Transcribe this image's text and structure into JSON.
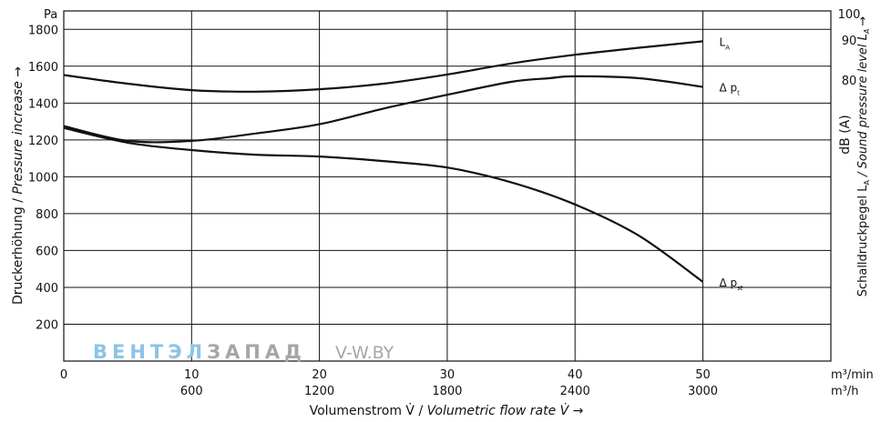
{
  "chart_data": {
    "type": "line",
    "y_unit": "Pa",
    "ylabel_de": "Druckerhöhung / ",
    "ylabel_en": "Pressure increase →",
    "ylim": [
      0,
      1900
    ],
    "yticks": [
      200,
      400,
      600,
      800,
      1000,
      1200,
      1400,
      1600,
      1800
    ],
    "xlabel_de": "Volumenstrom V̇ / ",
    "xlabel_en": "Volumetric flow rate V̇ →",
    "xlim": [
      0,
      60
    ],
    "x_unit_main": "m³/min",
    "x_unit_secondary": "m³/h",
    "xticks_main": [
      "0",
      "10",
      "20",
      "30",
      "40",
      "50"
    ],
    "xticks_secondary": [
      "600",
      "1200",
      "1800",
      "2400",
      "3000"
    ],
    "y2_unit": "dB (A)",
    "y2label_de": "Schalldruckpegel L",
    "y2label_sub": "A",
    "y2label_en": " / Sound pressure level L",
    "y2label_arrow": "→",
    "y2ticks": [
      "100",
      "90",
      "80"
    ],
    "grid": true,
    "series": [
      {
        "name": "L",
        "name_sub": "A",
        "axis": "right",
        "x": [
          0,
          5,
          10,
          15,
          20,
          25,
          30,
          35,
          40,
          45,
          50
        ],
        "y": [
          1552,
          1505,
          1470,
          1462,
          1475,
          1505,
          1555,
          1615,
          1662,
          1700,
          1735
        ]
      },
      {
        "name": "Δ p",
        "name_sub": "t",
        "axis": "left",
        "x": [
          0,
          5,
          10,
          15,
          20,
          25,
          30,
          35,
          38,
          40,
          45,
          50
        ],
        "y": [
          1275,
          1195,
          1195,
          1235,
          1285,
          1370,
          1445,
          1515,
          1535,
          1545,
          1535,
          1488
        ]
      },
      {
        "name": "Δ p",
        "name_sub": "st",
        "axis": "left",
        "x": [
          0,
          5,
          10,
          15,
          20,
          25,
          30,
          35,
          40,
          45,
          50
        ],
        "y": [
          1265,
          1185,
          1145,
          1120,
          1110,
          1085,
          1050,
          970,
          850,
          680,
          430
        ]
      }
    ]
  },
  "watermark": {
    "part1": "ВЕНТЭЛ",
    "part2": "ЗАПАД",
    "url": "V-W.BY"
  }
}
